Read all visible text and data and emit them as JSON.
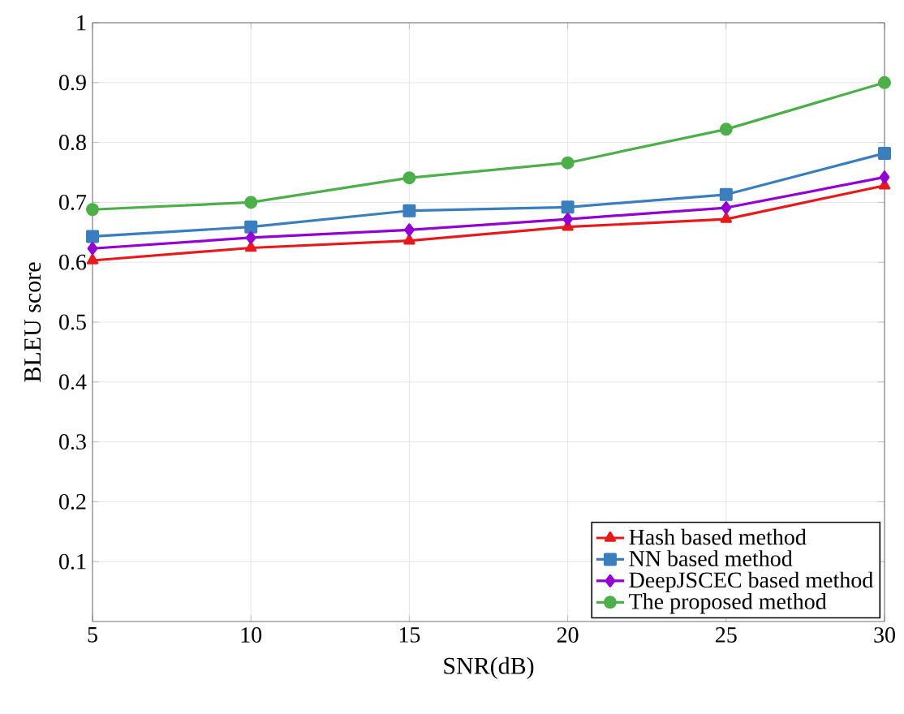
{
  "chart_data": {
    "type": "line",
    "xlabel": "SNR(dB)",
    "ylabel": "BLEU score",
    "x": [
      5,
      10,
      15,
      20,
      25,
      30
    ],
    "series": [
      {
        "name": "Hash based method",
        "color": "#e8191c",
        "marker": "triangle",
        "values": [
          0.603,
          0.624,
          0.636,
          0.659,
          0.672,
          0.728
        ]
      },
      {
        "name": "NN based method",
        "color": "#3a7ebd",
        "marker": "square",
        "values": [
          0.643,
          0.659,
          0.686,
          0.692,
          0.713,
          0.782
        ]
      },
      {
        "name": "DeepJSCEC based method",
        "color": "#9400d3",
        "marker": "diamond",
        "values": [
          0.623,
          0.641,
          0.654,
          0.672,
          0.691,
          0.742
        ]
      },
      {
        "name": "The proposed method",
        "color": "#4daf4a",
        "marker": "circle",
        "values": [
          0.688,
          0.7,
          0.741,
          0.766,
          0.822,
          0.9
        ]
      }
    ],
    "xlim": [
      5,
      30
    ],
    "xticks": [
      5,
      10,
      15,
      20,
      25,
      30
    ],
    "ylim": [
      0,
      1
    ],
    "yticks": [
      0.1,
      0.2,
      0.3,
      0.4,
      0.5,
      0.6,
      0.7,
      0.8,
      0.9,
      1
    ],
    "grid": true,
    "legend": "bottom right",
    "line_style": "solid"
  }
}
